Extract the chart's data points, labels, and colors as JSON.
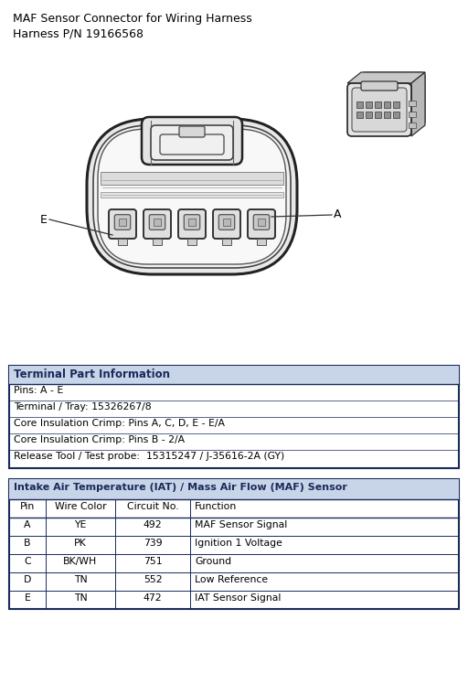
{
  "title_line1": "MAF Sensor Connector for Wiring Harness",
  "title_line2": "Harness P/N 19166568",
  "bg_color": "#ffffff",
  "terminal_info_title": "Terminal Part Information",
  "terminal_info_rows": [
    "Pins: A - E",
    "Terminal / Tray: 15326267/8",
    "Core Insulation Crimp: Pins A, C, D, E - E/A",
    "Core Insulation Crimp: Pins B - 2/A",
    "Release Tool / Test probe:  15315247 / J-35616-2A (GY)"
  ],
  "sensor_table_title": "Intake Air Temperature (IAT) / Mass Air Flow (MAF) Sensor",
  "sensor_table_headers": [
    "Pin",
    "Wire Color",
    "Circuit No.",
    "Function"
  ],
  "sensor_table_rows": [
    [
      "A",
      "YE",
      "492",
      "MAF Sensor Signal"
    ],
    [
      "B",
      "PK",
      "739",
      "Ignition 1 Voltage"
    ],
    [
      "C",
      "BK/WH",
      "751",
      "Ground"
    ],
    [
      "D",
      "TN",
      "552",
      "Low Reference"
    ],
    [
      "E",
      "TN",
      "472",
      "IAT Sensor Signal"
    ]
  ],
  "header_bg_color": "#c8d4e8",
  "table_border_color": "#1a2a5a",
  "text_color": "#000000",
  "connector_lc": "#222222",
  "connector_fc": "#f8f8f8",
  "latch_fc": "#e8e8e8",
  "pin_ec": "#333333",
  "pin_fc": "#e0e0e0",
  "pin_inner_fc": "#c8c8c8"
}
